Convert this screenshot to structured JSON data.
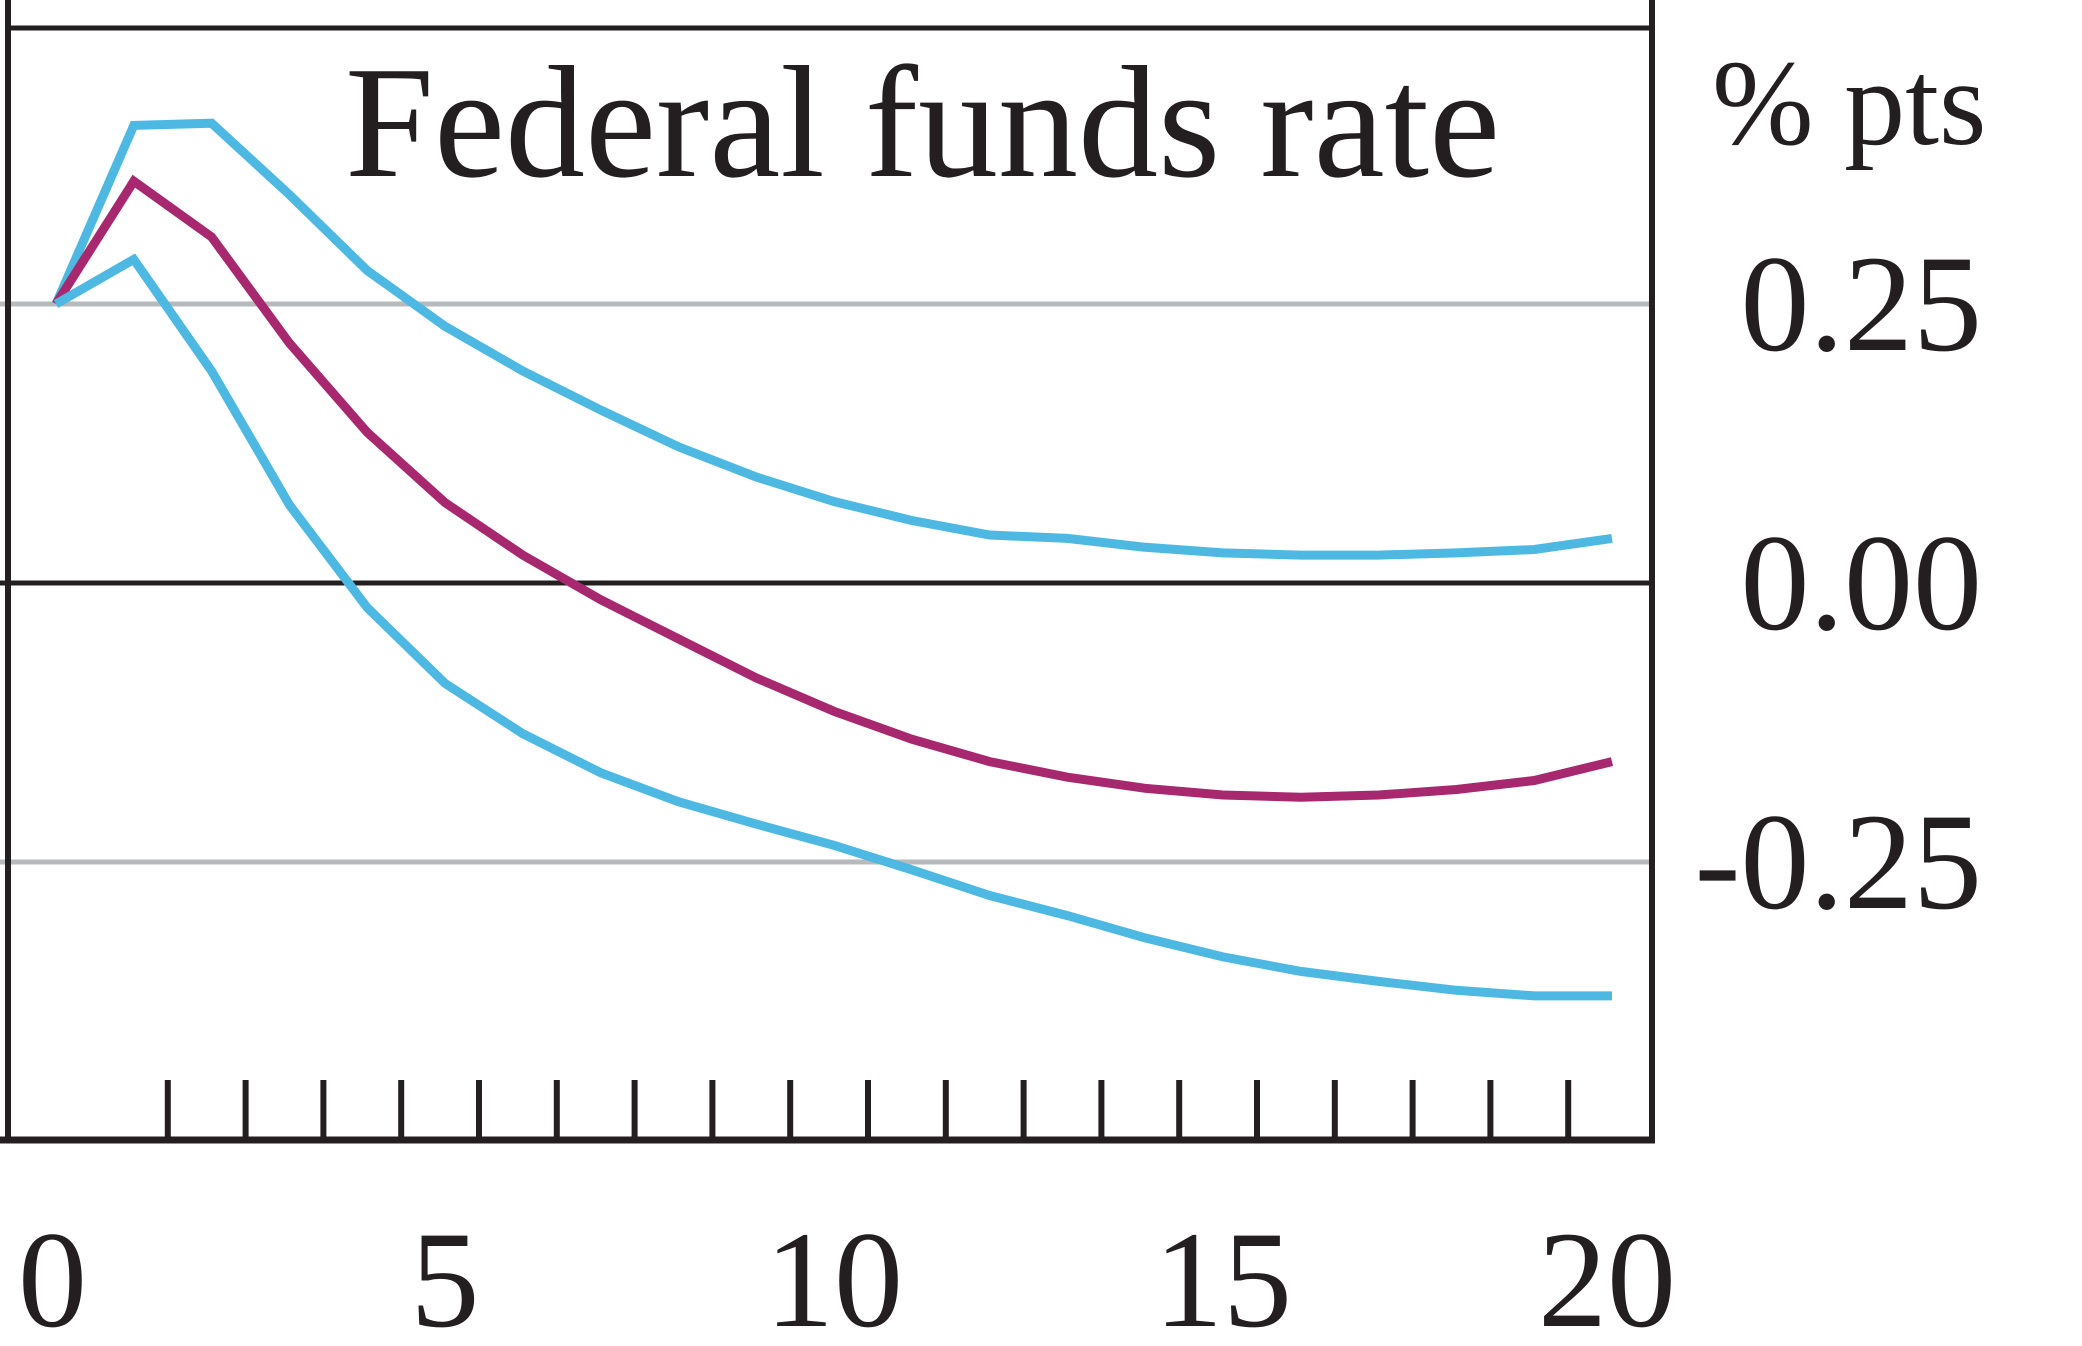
{
  "chart_data": {
    "type": "line",
    "title": "Federal funds rate",
    "unit": "% pts",
    "xlabel": "",
    "ylabel": "",
    "xlim": [
      0,
      20
    ],
    "ylim": [
      -0.5,
      0.5
    ],
    "x_ticks": [
      "0",
      "5",
      "10",
      "15",
      "20"
    ],
    "y_ticks": [
      {
        "value": 0.25,
        "label": "0.25"
      },
      {
        "value": 0.0,
        "label": "0.00"
      },
      {
        "value": -0.25,
        "label": "-0.25"
      }
    ],
    "legend": "none",
    "gridlines": [
      0.25,
      -0.25
    ],
    "x": [
      0,
      1,
      2,
      3,
      4,
      5,
      6,
      7,
      8,
      9,
      10,
      11,
      12,
      13,
      14,
      15,
      16,
      17,
      18,
      19,
      20
    ],
    "series": [
      {
        "role": "upper-band",
        "color": "#4db8e2",
        "values": [
          0.25,
          0.41,
          0.412,
          0.348,
          0.28,
          0.23,
          0.19,
          0.155,
          0.122,
          0.095,
          0.073,
          0.056,
          0.043,
          0.04,
          0.032,
          0.027,
          0.025,
          0.025,
          0.027,
          0.03,
          0.04
        ]
      },
      {
        "role": "median",
        "color": "#a7286e",
        "values": [
          0.25,
          0.36,
          0.31,
          0.215,
          0.135,
          0.072,
          0.025,
          -0.015,
          -0.05,
          -0.085,
          -0.115,
          -0.14,
          -0.16,
          -0.174,
          -0.184,
          -0.19,
          -0.192,
          -0.19,
          -0.185,
          -0.177,
          -0.16
        ]
      },
      {
        "role": "lower-band",
        "color": "#4db8e2",
        "values": [
          0.25,
          0.29,
          0.19,
          0.07,
          -0.022,
          -0.09,
          -0.135,
          -0.17,
          -0.196,
          -0.216,
          -0.235,
          -0.257,
          -0.28,
          -0.298,
          -0.318,
          -0.335,
          -0.348,
          -0.357,
          -0.365,
          -0.37,
          -0.37
        ]
      }
    ]
  }
}
